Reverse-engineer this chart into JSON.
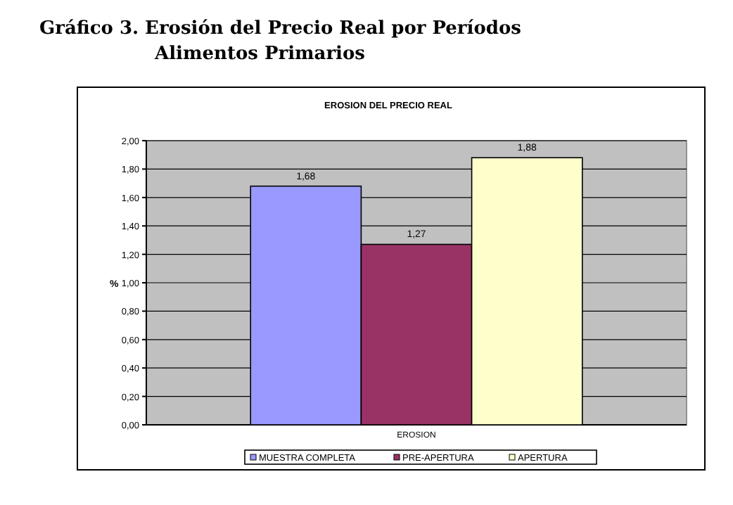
{
  "chart_data": {
    "type": "bar",
    "title": "Gráfico 3.  Erosión del Precio Real por Períodos",
    "subtitle": "Alimentos Primarios",
    "annotations": [
      "EROSION DEL PRECIO REAL"
    ],
    "ylabel": "%",
    "categories": [
      "EROSION"
    ],
    "series": [
      {
        "name": "MUESTRA COMPLETA",
        "color": "#9999ff",
        "values": [
          1.68
        ],
        "value_labels": [
          "1,68"
        ]
      },
      {
        "name": "PRE-APERTURA",
        "color": "#993366",
        "values": [
          1.27
        ],
        "value_labels": [
          "1,27"
        ]
      },
      {
        "name": "APERTURA",
        "color": "#ffffcc",
        "values": [
          1.88
        ],
        "value_labels": [
          "1,88"
        ]
      }
    ],
    "ylim": [
      0,
      2
    ],
    "yticks": [
      {
        "value": 0,
        "label": "0,00"
      },
      {
        "value": 0.2,
        "label": "0,20"
      },
      {
        "value": 0.4,
        "label": "0,40"
      },
      {
        "value": 0.6,
        "label": "0,60"
      },
      {
        "value": 0.8,
        "label": "0,80"
      },
      {
        "value": 1,
        "label": "1,00"
      },
      {
        "value": 1.2,
        "label": "1,20"
      },
      {
        "value": 1.4,
        "label": "1,40"
      },
      {
        "value": 1.6,
        "label": "1,60"
      },
      {
        "value": 1.8,
        "label": "1,80"
      },
      {
        "value": 2,
        "label": "2,00"
      }
    ],
    "grid": "y",
    "legend": "bottom"
  }
}
